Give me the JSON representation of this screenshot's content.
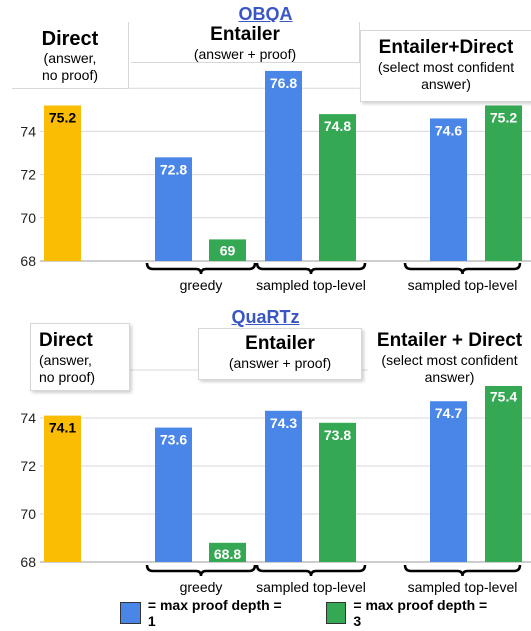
{
  "colors": {
    "direct": "#fbbc04",
    "depth1": "#4a86e8",
    "depth3": "#34a853",
    "title": "#3a56c5"
  },
  "legend": [
    {
      "label": "= max proof depth = 1",
      "color": "#4a86e8"
    },
    {
      "label": "= max proof depth = 3",
      "color": "#34a853"
    }
  ],
  "chart_data": [
    {
      "type": "bar",
      "title": "OBQA",
      "ylim": [
        68,
        76.8
      ],
      "yticks": [
        68,
        70,
        72,
        74
      ],
      "grid": true,
      "groups": {
        "direct": {
          "title": "Direct",
          "subtitle": [
            "(answer,",
            "no proof)"
          ]
        },
        "entailer": {
          "title": "Entailer",
          "subtitle": [
            "(answer + proof)"
          ]
        },
        "combo": {
          "title": "Entailer+Direct",
          "subtitle": [
            "(select most confident",
            "answer)"
          ]
        }
      },
      "bracket_labels": [
        "greedy",
        "sampled top-level",
        "sampled top-level"
      ],
      "bars": [
        {
          "value": 75.2,
          "label": "75.2",
          "series": "direct"
        },
        {
          "value": 72.8,
          "label": "72.8",
          "series": "depth1"
        },
        {
          "value": 69,
          "label": "69",
          "series": "depth3"
        },
        {
          "value": 76.8,
          "label": "76.8",
          "series": "depth1"
        },
        {
          "value": 74.8,
          "label": "74.8",
          "series": "depth3"
        },
        {
          "value": 74.6,
          "label": "74.6",
          "series": "depth1"
        },
        {
          "value": 75.2,
          "label": "75.2",
          "series": "depth3"
        }
      ]
    },
    {
      "type": "bar",
      "title": "QuaRTz",
      "ylim": [
        68,
        75.4
      ],
      "yticks": [
        68,
        70,
        72,
        74
      ],
      "grid": true,
      "groups": {
        "direct": {
          "title": "Direct",
          "subtitle": [
            "(answer,",
            "no proof)"
          ]
        },
        "entailer": {
          "title": "Entailer",
          "subtitle": [
            "(answer + proof)"
          ]
        },
        "combo": {
          "title": "Entailer + Direct",
          "subtitle": [
            "(select most confident",
            "answer)"
          ]
        }
      },
      "bracket_labels": [
        "greedy",
        "sampled top-level",
        "sampled top-level"
      ],
      "bars": [
        {
          "value": 74.1,
          "label": "74.1",
          "series": "direct"
        },
        {
          "value": 73.6,
          "label": "73.6",
          "series": "depth1"
        },
        {
          "value": 68.8,
          "label": "68.8",
          "series": "depth3"
        },
        {
          "value": 74.3,
          "label": "74.3",
          "series": "depth1"
        },
        {
          "value": 73.8,
          "label": "73.8",
          "series": "depth3"
        },
        {
          "value": 74.7,
          "label": "74.7",
          "series": "depth1"
        },
        {
          "value": 75.4,
          "label": "75.4",
          "series": "depth3"
        }
      ]
    }
  ]
}
